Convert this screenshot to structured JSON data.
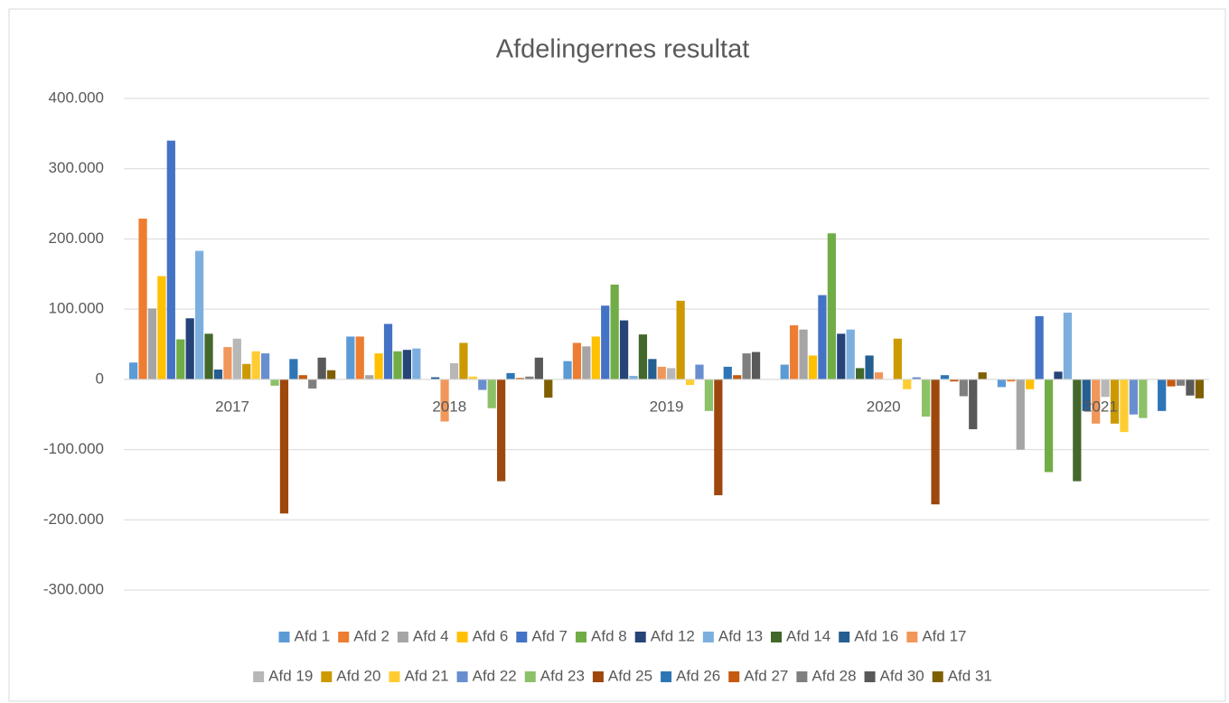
{
  "chart_data": {
    "type": "bar",
    "title": "Afdelingernes resultat",
    "categories": [
      "2017",
      "2018",
      "2019",
      "2020",
      "2021"
    ],
    "ylim": [
      -300000,
      400000
    ],
    "yticks": [
      {
        "value": -300000,
        "label": "-300.000"
      },
      {
        "value": -200000,
        "label": "-200.000"
      },
      {
        "value": -100000,
        "label": "-100.000"
      },
      0,
      {
        "value": 100000,
        "label": "100.000"
      },
      {
        "value": 200000,
        "label": "200.000"
      },
      {
        "value": 300000,
        "label": "300.000"
      },
      {
        "value": 400000,
        "label": "400.000"
      }
    ],
    "grid": true,
    "legend": "bottom",
    "series": [
      {
        "name": "Afd 1",
        "color": "#5b9bd5",
        "values": [
          24000,
          61000,
          26000,
          21000,
          -11000
        ]
      },
      {
        "name": "Afd 2",
        "color": "#ed7d31",
        "values": [
          229000,
          61000,
          52000,
          77000,
          -3000
        ]
      },
      {
        "name": "Afd 4",
        "color": "#a5a5a5",
        "values": [
          101000,
          6000,
          47000,
          71000,
          -100000
        ]
      },
      {
        "name": "Afd 6",
        "color": "#ffc000",
        "values": [
          147000,
          37000,
          61000,
          34000,
          -14000
        ]
      },
      {
        "name": "Afd 7",
        "color": "#4472c4",
        "values": [
          340000,
          79000,
          105000,
          120000,
          90000
        ]
      },
      {
        "name": "Afd 8",
        "color": "#70ad47",
        "values": [
          57000,
          40000,
          135000,
          208000,
          -132000
        ]
      },
      {
        "name": "Afd 12",
        "color": "#264478",
        "values": [
          87000,
          42000,
          84000,
          65000,
          11000
        ]
      },
      {
        "name": "Afd 13",
        "color": "#7cafdd",
        "values": [
          183000,
          44000,
          5000,
          71000,
          95000
        ]
      },
      {
        "name": "Afd 14",
        "color": "#43682b",
        "values": [
          65000,
          0,
          64000,
          16000,
          -145000
        ]
      },
      {
        "name": "Afd 16",
        "color": "#255e91",
        "values": [
          14000,
          3000,
          29000,
          34000,
          -45000
        ]
      },
      {
        "name": "Afd 17",
        "color": "#f1975a",
        "values": [
          46000,
          -60000,
          18000,
          10000,
          -63000
        ]
      },
      {
        "name": "Afd 19",
        "color": "#b7b7b7",
        "values": [
          58000,
          23000,
          16000,
          0,
          -25000
        ]
      },
      {
        "name": "Afd 20",
        "color": "#cc9a00",
        "values": [
          22000,
          52000,
          112000,
          58000,
          -63000
        ]
      },
      {
        "name": "Afd 21",
        "color": "#ffcd33",
        "values": [
          40000,
          4000,
          -8000,
          -14000,
          -75000
        ]
      },
      {
        "name": "Afd 22",
        "color": "#698ed0",
        "values": [
          37000,
          -15000,
          21000,
          3000,
          -50000
        ]
      },
      {
        "name": "Afd 23",
        "color": "#8cc168",
        "values": [
          -9000,
          -41000,
          -45000,
          -53000,
          -55000
        ]
      },
      {
        "name": "Afd 25",
        "color": "#9e480e",
        "values": [
          -191000,
          -145000,
          -165000,
          -178000,
          0
        ]
      },
      {
        "name": "Afd 26",
        "color": "#2e75b6",
        "values": [
          29000,
          9000,
          18000,
          6000,
          -45000
        ]
      },
      {
        "name": "Afd 27",
        "color": "#c55a11",
        "values": [
          6000,
          2000,
          6000,
          -3000,
          -10000
        ]
      },
      {
        "name": "Afd 28",
        "color": "#7f7f7f",
        "values": [
          -13000,
          4000,
          37000,
          -24000,
          -9000
        ]
      },
      {
        "name": "Afd 30",
        "color": "#595959",
        "values": [
          31000,
          31000,
          39000,
          -71000,
          -23000
        ]
      },
      {
        "name": "Afd 31",
        "color": "#7f6000",
        "values": [
          13000,
          -26000,
          0,
          10000,
          -27000
        ]
      }
    ]
  }
}
